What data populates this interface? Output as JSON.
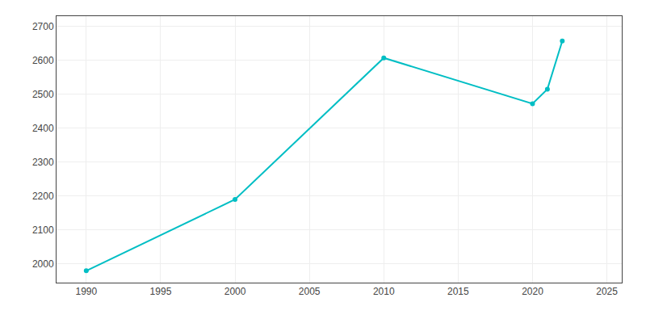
{
  "chart_data": {
    "type": "line",
    "x": [
      1990,
      2000,
      2010,
      2020,
      2021,
      2022
    ],
    "values": [
      1980,
      2190,
      2607,
      2472,
      2515,
      2657
    ],
    "color": "#00BEC4",
    "marker": "circle",
    "xlim": [
      1988,
      2026
    ],
    "ylim": [
      1945,
      2730
    ],
    "xticks": [
      1990,
      1995,
      2000,
      2005,
      2010,
      2015,
      2020,
      2025
    ],
    "yticks": [
      2000,
      2100,
      2200,
      2300,
      2400,
      2500,
      2600,
      2700
    ],
    "grid": true
  }
}
